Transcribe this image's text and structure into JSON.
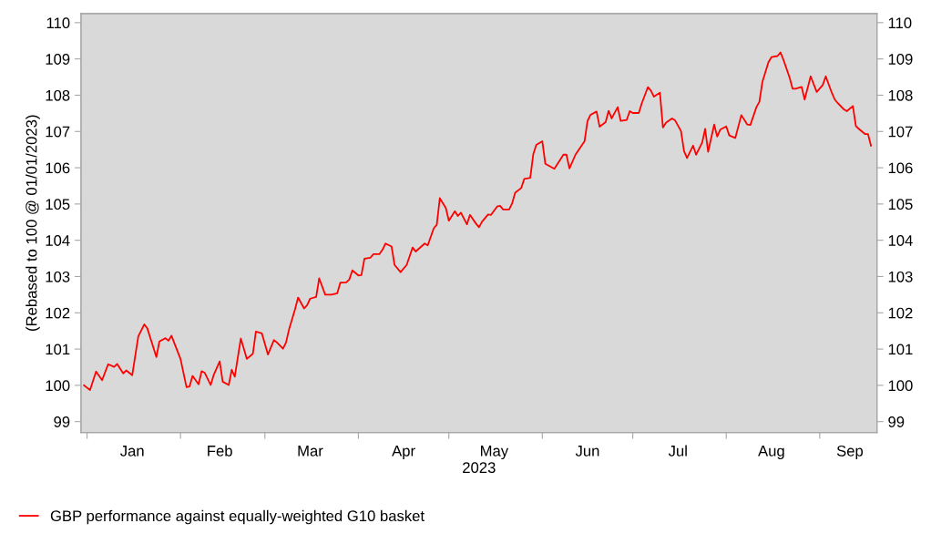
{
  "chart_data": {
    "type": "line",
    "ylabel": "(Rebased to 100 @ 01/01/2023)",
    "xlabel": "2023",
    "x": [
      "2022-12-31",
      "2023-01-02",
      "2023-01-04",
      "2023-01-06",
      "2023-01-08",
      "2023-01-10",
      "2023-01-11",
      "2023-01-13",
      "2023-01-14",
      "2023-01-16",
      "2023-01-18",
      "2023-01-20",
      "2023-01-21",
      "2023-01-24",
      "2023-01-25",
      "2023-01-27",
      "2023-01-28",
      "2023-01-29",
      "2023-02-01",
      "2023-02-03",
      "2023-02-04",
      "2023-02-05",
      "2023-02-07",
      "2023-02-08",
      "2023-02-09",
      "2023-02-11",
      "2023-02-12",
      "2023-02-14",
      "2023-02-15",
      "2023-02-17",
      "2023-02-18",
      "2023-02-19",
      "2023-02-21",
      "2023-02-23",
      "2023-02-25",
      "2023-02-26",
      "2023-02-28",
      "2023-03-02",
      "2023-03-04",
      "2023-03-05",
      "2023-03-07",
      "2023-03-08",
      "2023-03-09",
      "2023-03-11",
      "2023-03-12",
      "2023-03-14",
      "2023-03-15",
      "2023-03-16",
      "2023-03-18",
      "2023-03-19",
      "2023-03-21",
      "2023-03-23",
      "2023-03-25",
      "2023-03-26",
      "2023-03-28",
      "2023-03-29",
      "2023-03-30",
      "2023-04-01",
      "2023-04-02",
      "2023-04-03",
      "2023-04-05",
      "2023-04-06",
      "2023-04-08",
      "2023-04-09",
      "2023-04-10",
      "2023-04-12",
      "2023-04-13",
      "2023-04-15",
      "2023-04-17",
      "2023-04-19",
      "2023-04-20",
      "2023-04-23",
      "2023-04-24",
      "2023-04-26",
      "2023-04-27",
      "2023-04-28",
      "2023-04-30",
      "2023-05-01",
      "2023-05-03",
      "2023-05-04",
      "2023-05-05",
      "2023-05-07",
      "2023-05-08",
      "2023-05-10",
      "2023-05-11",
      "2023-05-12",
      "2023-05-14",
      "2023-05-15",
      "2023-05-17",
      "2023-05-18",
      "2023-05-19",
      "2023-05-21",
      "2023-05-22",
      "2023-05-23",
      "2023-05-25",
      "2023-05-26",
      "2023-05-28",
      "2023-05-29",
      "2023-05-30",
      "2023-06-01",
      "2023-06-02",
      "2023-06-05",
      "2023-06-08",
      "2023-06-09",
      "2023-06-10",
      "2023-06-12",
      "2023-06-15",
      "2023-06-16",
      "2023-06-17",
      "2023-06-19",
      "2023-06-20",
      "2023-06-22",
      "2023-06-23",
      "2023-06-24",
      "2023-06-26",
      "2023-06-27",
      "2023-06-29",
      "2023-06-30",
      "2023-07-01",
      "2023-07-03",
      "2023-07-04",
      "2023-07-06",
      "2023-07-07",
      "2023-07-08",
      "2023-07-10",
      "2023-07-11",
      "2023-07-12",
      "2023-07-14",
      "2023-07-15",
      "2023-07-17",
      "2023-07-18",
      "2023-07-19",
      "2023-07-21",
      "2023-07-22",
      "2023-07-24",
      "2023-07-25",
      "2023-07-26",
      "2023-07-28",
      "2023-07-29",
      "2023-07-30",
      "2023-08-01",
      "2023-08-02",
      "2023-08-04",
      "2023-08-06",
      "2023-08-08",
      "2023-08-09",
      "2023-08-11",
      "2023-08-12",
      "2023-08-13",
      "2023-08-15",
      "2023-08-16",
      "2023-08-18",
      "2023-08-19",
      "2023-08-20",
      "2023-08-22",
      "2023-08-23",
      "2023-08-24",
      "2023-08-26",
      "2023-08-27",
      "2023-08-29",
      "2023-08-31",
      "2023-09-02",
      "2023-09-03",
      "2023-09-05",
      "2023-09-06",
      "2023-09-07",
      "2023-09-09",
      "2023-09-10",
      "2023-09-12",
      "2023-09-13",
      "2023-09-14",
      "2023-09-16",
      "2023-09-17",
      "2023-09-18"
    ],
    "series": [
      {
        "name": "GBP performance against equally-weighted G10 basket",
        "color": "#ff0000",
        "values": [
          100.0,
          99.87,
          100.38,
          100.14,
          100.58,
          100.51,
          100.59,
          100.33,
          100.41,
          100.28,
          101.35,
          101.68,
          101.57,
          100.78,
          101.21,
          101.3,
          101.23,
          101.37,
          100.73,
          99.95,
          99.97,
          100.26,
          100.03,
          100.39,
          100.35,
          100.01,
          100.28,
          100.66,
          100.1,
          100.01,
          100.43,
          100.24,
          101.29,
          100.73,
          100.87,
          101.48,
          101.43,
          100.85,
          101.25,
          101.18,
          101.01,
          101.18,
          101.54,
          102.1,
          102.42,
          102.12,
          102.21,
          102.39,
          102.44,
          102.95,
          102.5,
          102.5,
          102.54,
          102.83,
          102.84,
          102.92,
          103.17,
          103.03,
          103.04,
          103.49,
          103.52,
          103.62,
          103.62,
          103.74,
          103.91,
          103.83,
          103.32,
          103.12,
          103.32,
          103.8,
          103.69,
          103.91,
          103.86,
          104.33,
          104.43,
          105.16,
          104.89,
          104.54,
          104.8,
          104.67,
          104.76,
          104.44,
          104.7,
          104.46,
          104.36,
          104.51,
          104.71,
          104.7,
          104.93,
          104.95,
          104.85,
          104.85,
          105.02,
          105.31,
          105.44,
          105.69,
          105.72,
          106.37,
          106.63,
          106.73,
          106.11,
          105.97,
          106.36,
          106.36,
          105.98,
          106.36,
          106.73,
          107.29,
          107.46,
          107.55,
          107.13,
          107.26,
          107.57,
          107.36,
          107.67,
          107.29,
          107.32,
          107.56,
          107.51,
          107.51,
          107.78,
          108.22,
          108.13,
          107.96,
          108.07,
          107.11,
          107.24,
          107.36,
          107.31,
          107.01,
          106.46,
          106.27,
          106.61,
          106.36,
          106.69,
          107.07,
          106.44,
          107.19,
          106.86,
          107.05,
          107.14,
          106.89,
          106.82,
          107.45,
          107.19,
          107.18,
          107.67,
          107.82,
          108.37,
          108.91,
          109.05,
          109.08,
          109.18,
          108.97,
          108.49,
          108.18,
          108.18,
          108.23,
          107.88,
          108.52,
          108.09,
          108.28,
          108.52,
          108.07,
          107.88,
          107.78,
          107.61,
          107.56,
          107.7,
          107.15,
          107.07,
          106.93,
          106.93,
          106.61
        ]
      }
    ],
    "xlim": [
      "2022-12-30",
      "2023-09-20"
    ],
    "xticks": [
      {
        "value": "2023-01-01",
        "label": null
      },
      {
        "value": "2023-01-16",
        "label": "Jan"
      },
      {
        "value": "2023-02-01",
        "label": null
      },
      {
        "value": "2023-02-14",
        "label": "Feb"
      },
      {
        "value": "2023-03-01",
        "label": null
      },
      {
        "value": "2023-03-16",
        "label": "Mar"
      },
      {
        "value": "2023-04-01",
        "label": null
      },
      {
        "value": "2023-04-16",
        "label": "Apr"
      },
      {
        "value": "2023-05-01",
        "label": null
      },
      {
        "value": "2023-05-16",
        "label": "May"
      },
      {
        "value": "2023-06-01",
        "label": null
      },
      {
        "value": "2023-06-16",
        "label": "Jun"
      },
      {
        "value": "2023-07-01",
        "label": null
      },
      {
        "value": "2023-07-16",
        "label": "Jul"
      },
      {
        "value": "2023-08-01",
        "label": null
      },
      {
        "value": "2023-08-16",
        "label": "Aug"
      },
      {
        "value": "2023-09-01",
        "label": null
      },
      {
        "value": "2023-09-11",
        "label": "Sep"
      }
    ],
    "ylim": [
      98.7,
      110.25
    ],
    "yticks": [
      99,
      100,
      101,
      102,
      103,
      104,
      105,
      106,
      107,
      108,
      109,
      110
    ],
    "y2lim": [
      98.7,
      110.25
    ],
    "y2ticks": [
      99,
      100,
      101,
      102,
      103,
      104,
      105,
      106,
      107,
      108,
      109,
      110
    ],
    "grid": false,
    "legend": "bottom left",
    "marker": "none",
    "line_style": "solid"
  }
}
